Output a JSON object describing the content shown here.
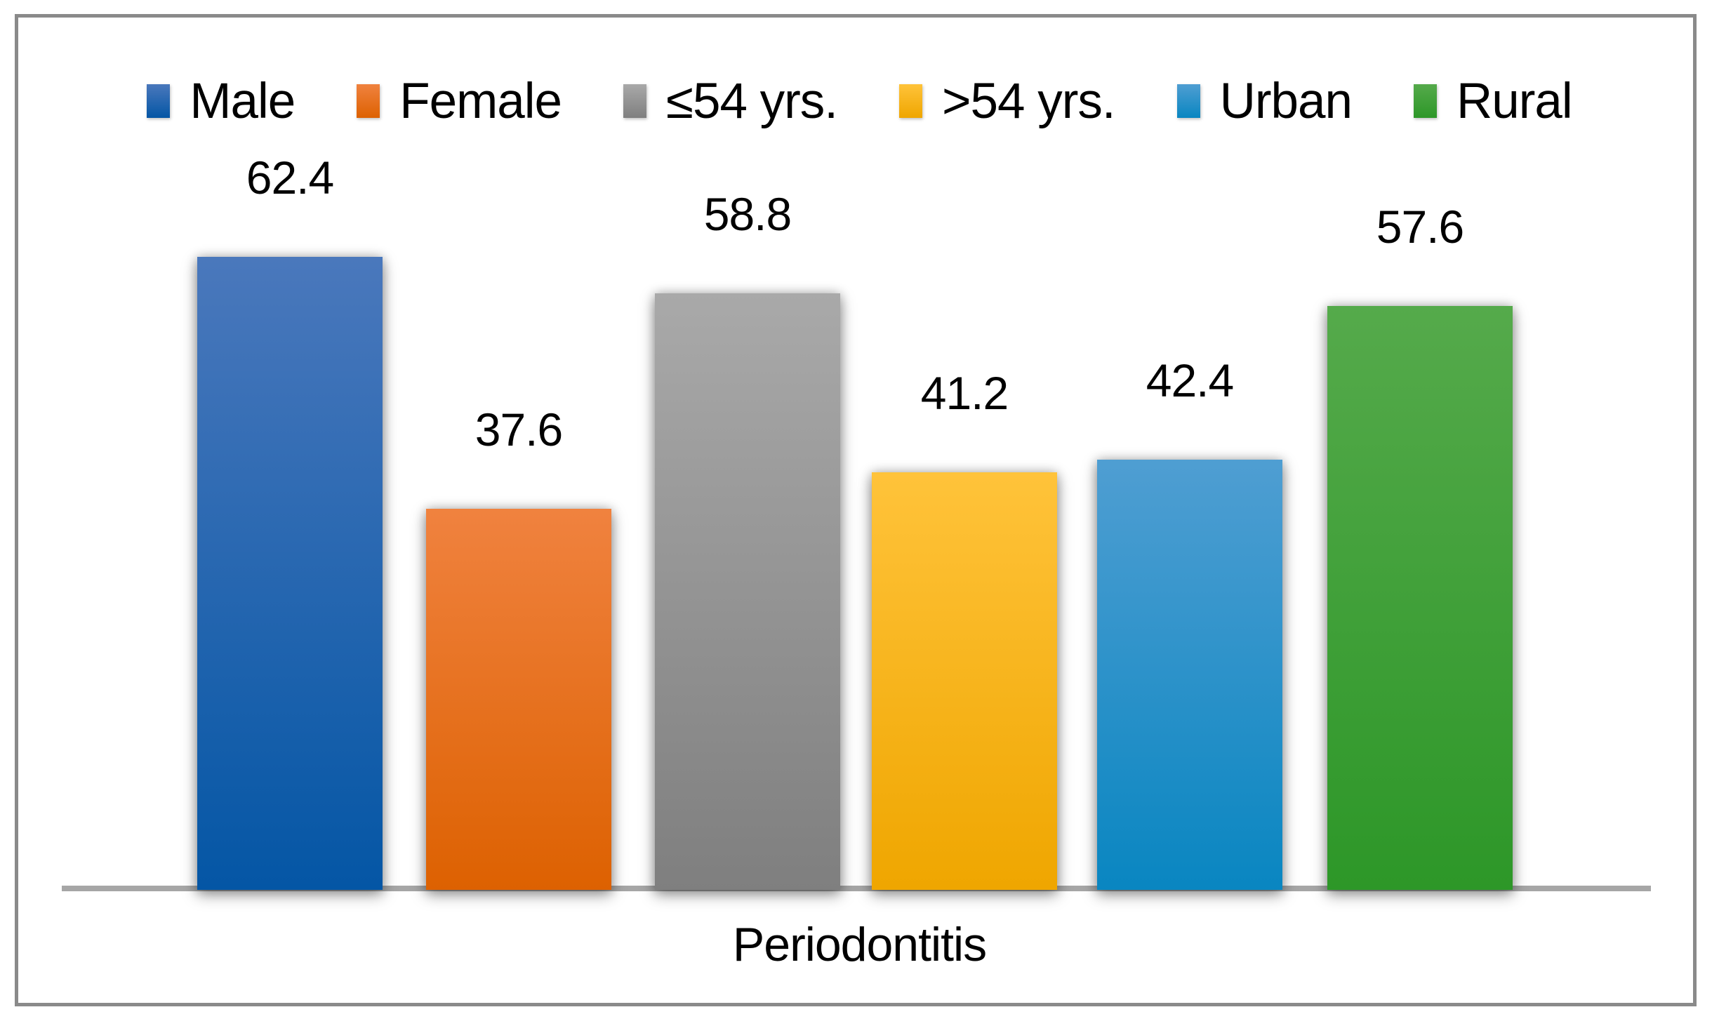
{
  "chart_data": {
    "type": "bar",
    "title": "",
    "xlabel": "Periodontitis",
    "ylabel": "",
    "ylim": [
      0,
      70
    ],
    "grid": false,
    "legend_position": "top",
    "categories": [
      "Male",
      "Female",
      "≤54 yrs.",
      ">54 yrs.",
      "Urban",
      "Rural"
    ],
    "values": [
      62.4,
      37.6,
      58.8,
      41.2,
      42.4,
      57.6
    ],
    "series": [
      {
        "name": "Male",
        "slug": "male",
        "value": 62.4,
        "label": "62.4",
        "color_top": "#4A78BC",
        "color_bottom": "#0456A5"
      },
      {
        "name": "Female",
        "slug": "female",
        "value": 37.6,
        "label": "37.6",
        "color_top": "#F0823F",
        "color_bottom": "#DD6101"
      },
      {
        "name": "≤54 yrs.",
        "slug": "le-54-yrs",
        "value": 58.8,
        "label": "58.8",
        "color_top": "#A9A9A9",
        "color_bottom": "#7F7F7F"
      },
      {
        "name": ">54 yrs.",
        "slug": "gt-54-yrs",
        "value": 41.2,
        "label": "41.2",
        "color_top": "#FFC33A",
        "color_bottom": "#EFA600"
      },
      {
        "name": "Urban",
        "slug": "urban",
        "value": 42.4,
        "label": "42.4",
        "color_top": "#4F9ED2",
        "color_bottom": "#0986C1"
      },
      {
        "name": "Rural",
        "slug": "rural",
        "value": 57.6,
        "label": "57.6",
        "color_top": "#55AA4B",
        "color_bottom": "#2D9728"
      }
    ]
  },
  "colors": {
    "border": "#8A8A8A",
    "axis_line": "#A6A6A6",
    "background": "#FFFFFF",
    "text": "#000000"
  }
}
